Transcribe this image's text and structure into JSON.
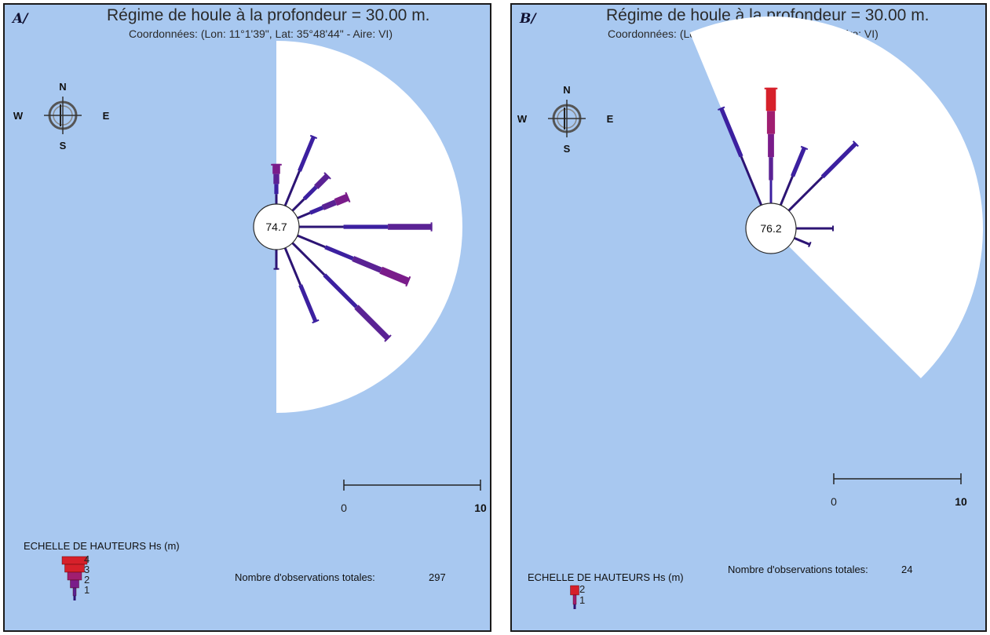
{
  "colors": {
    "background": "#a8c8f0",
    "sector": "#ffffff",
    "hs_levels": [
      "#2c1474",
      "#3c20a0",
      "#5a2294",
      "#7a1c8a",
      "#a01e70",
      "#d6202a"
    ]
  },
  "compass": {
    "north": "N",
    "south": "S",
    "east": "E",
    "west": "W"
  },
  "panels": [
    {
      "id": "A",
      "letter": "A/",
      "title": "Régime de houle à la profondeur = 30.00 m.",
      "subtitle": "Coordonnées: (Lon: 11°1'39\", Lat: 35°48'44\"  -  Aire: VI)",
      "calm_value": "74.7",
      "scale_labels": [
        "0",
        "10"
      ],
      "legend_title": "ECHELLE DE HAUTEURS Hs (m)",
      "legend_levels": [
        "4",
        "3",
        "2",
        "1"
      ],
      "observations_label": "Nombre d'observations totales:",
      "observations_count": "297"
    },
    {
      "id": "B",
      "letter": "B/",
      "title": "Régime de houle à la profondeur = 30.00 m.",
      "subtitle": "Coordonnées: (Lon: 10°59'31\", Lat: 35°45'24\"  -  Aire: VI)",
      "calm_value": "76.2",
      "scale_labels": [
        "0",
        "10"
      ],
      "legend_title": "ECHELLE DE HAUTEURS Hs (m)",
      "legend_levels": [
        "2",
        "1"
      ],
      "observations_label": "Nombre d'observations totales:",
      "observations_count": "24"
    }
  ],
  "chart_data": [
    {
      "type": "wave-rose",
      "title": "Régime de houle à la profondeur = 30.00 m.",
      "calm_percent": 74.7,
      "total_observations": 297,
      "scale_range": [
        0,
        10
      ],
      "sector_degrees": [
        0,
        180
      ],
      "directions": [
        {
          "bearing": 0,
          "frequency": 1.6,
          "max_hs_class": 4
        },
        {
          "bearing": 22.5,
          "frequency": 3.0,
          "max_hs_class": 2
        },
        {
          "bearing": 45,
          "frequency": 2.0,
          "max_hs_class": 3
        },
        {
          "bearing": 67.5,
          "frequency": 2.2,
          "max_hs_class": 4
        },
        {
          "bearing": 90,
          "frequency": 5.3,
          "max_hs_class": 3
        },
        {
          "bearing": 112.5,
          "frequency": 4.8,
          "max_hs_class": 4
        },
        {
          "bearing": 135,
          "frequency": 5.4,
          "max_hs_class": 3
        },
        {
          "bearing": 157.5,
          "frequency": 3.2,
          "max_hs_class": 2
        },
        {
          "bearing": 180,
          "frequency": 0.8,
          "max_hs_class": 1
        }
      ]
    },
    {
      "type": "wave-rose",
      "title": "Régime de houle à la profondeur = 30.00 m.",
      "calm_percent": 76.2,
      "total_observations": 24,
      "scale_range": [
        0,
        10
      ],
      "sector_degrees": [
        -22.5,
        135
      ],
      "directions": [
        {
          "bearing": -22.5,
          "frequency": 4.2,
          "max_hs_class": 2
        },
        {
          "bearing": 0,
          "frequency": 4.6,
          "max_hs_class": 5
        },
        {
          "bearing": 22.5,
          "frequency": 2.5,
          "max_hs_class": 2
        },
        {
          "bearing": 45,
          "frequency": 3.8,
          "max_hs_class": 2
        },
        {
          "bearing": 90,
          "frequency": 1.5,
          "max_hs_class": 1
        },
        {
          "bearing": 112.5,
          "frequency": 0.7,
          "max_hs_class": 1
        }
      ]
    }
  ]
}
